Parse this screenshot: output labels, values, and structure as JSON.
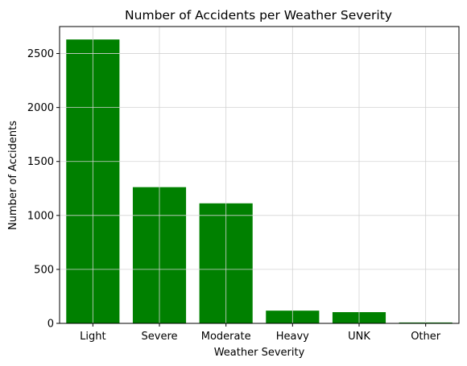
{
  "chart_data": {
    "type": "bar",
    "title": "Number of Accidents per Weather Severity",
    "xlabel": "Weather Severity",
    "ylabel": "Number of Accidents",
    "categories": [
      "Light",
      "Severe",
      "Moderate",
      "Heavy",
      "UNK",
      "Other"
    ],
    "values": [
      2630,
      1262,
      1112,
      118,
      104,
      8
    ],
    "ylim": [
      0,
      2750
    ],
    "yticks": [
      0,
      500,
      1000,
      1500,
      2000,
      2500
    ],
    "grid": true,
    "bar_color": "#008000",
    "grid_color": "#d3d3d3"
  }
}
